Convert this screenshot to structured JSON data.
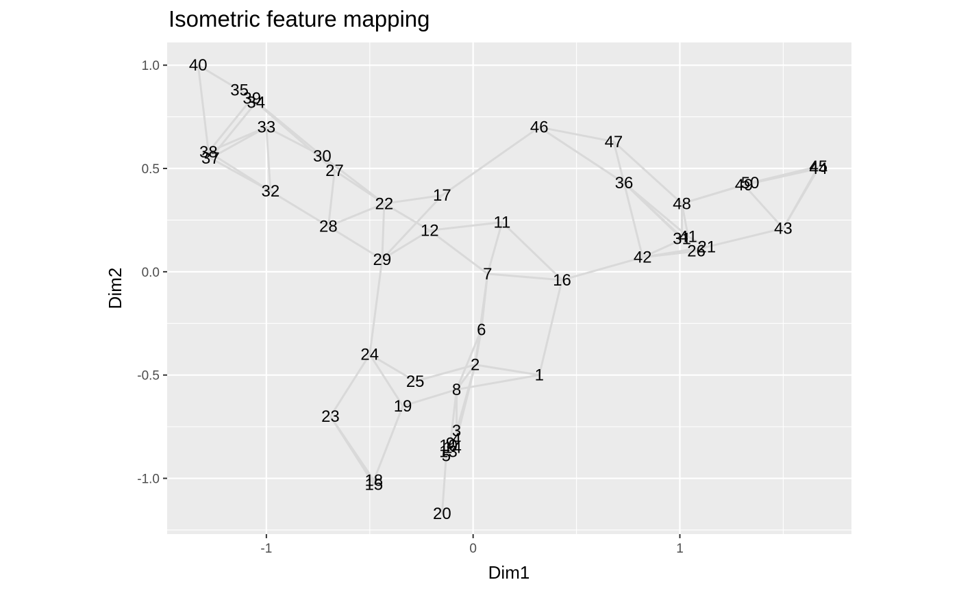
{
  "chart_data": {
    "type": "scatter",
    "title": "Isometric feature mapping",
    "xlabel": "Dim1",
    "ylabel": "Dim2",
    "xlim": [
      -1.48,
      1.83
    ],
    "ylim": [
      -1.27,
      1.11
    ],
    "x_ticks": [
      {
        "value": -1,
        "label": "-1"
      },
      {
        "value": 0,
        "label": "0"
      },
      {
        "value": 1,
        "label": "1"
      }
    ],
    "y_ticks": [
      {
        "value": 1.0,
        "label": "1.0"
      },
      {
        "value": 0.5,
        "label": "0.5"
      },
      {
        "value": 0.0,
        "label": "0.0"
      },
      {
        "value": -0.5,
        "label": "-0.5"
      },
      {
        "value": -1.0,
        "label": "-1.0"
      }
    ],
    "grid": true,
    "panel_color": "#ebebeb",
    "grid_color": "#ffffff",
    "edge_color": "#d9d9d9",
    "points": [
      {
        "label": "1",
        "x": 0.32,
        "y": -0.5
      },
      {
        "label": "2",
        "x": 0.01,
        "y": -0.45
      },
      {
        "label": "3",
        "x": -0.08,
        "y": -0.77
      },
      {
        "label": "4",
        "x": -0.08,
        "y": -0.81
      },
      {
        "label": "5",
        "x": -0.13,
        "y": -0.89
      },
      {
        "label": "6",
        "x": 0.04,
        "y": -0.28
      },
      {
        "label": "7",
        "x": 0.07,
        "y": -0.01
      },
      {
        "label": "8",
        "x": -0.08,
        "y": -0.57
      },
      {
        "label": "9",
        "x": -0.11,
        "y": -0.83
      },
      {
        "label": "10",
        "x": -0.12,
        "y": -0.84
      },
      {
        "label": "11",
        "x": 0.14,
        "y": 0.24
      },
      {
        "label": "12",
        "x": -0.21,
        "y": 0.2
      },
      {
        "label": "13",
        "x": -0.12,
        "y": -0.87
      },
      {
        "label": "14",
        "x": -0.1,
        "y": -0.85
      },
      {
        "label": "15",
        "x": -0.48,
        "y": -1.03
      },
      {
        "label": "16",
        "x": 0.43,
        "y": -0.04
      },
      {
        "label": "17",
        "x": -0.15,
        "y": 0.37
      },
      {
        "label": "18",
        "x": -0.48,
        "y": -1.01
      },
      {
        "label": "19",
        "x": -0.34,
        "y": -0.65
      },
      {
        "label": "20",
        "x": -0.15,
        "y": -1.17
      },
      {
        "label": "21",
        "x": 1.13,
        "y": 0.12
      },
      {
        "label": "22",
        "x": -0.43,
        "y": 0.33
      },
      {
        "label": "23",
        "x": -0.69,
        "y": -0.7
      },
      {
        "label": "24",
        "x": -0.5,
        "y": -0.4
      },
      {
        "label": "25",
        "x": -0.28,
        "y": -0.53
      },
      {
        "label": "26",
        "x": 1.08,
        "y": 0.1
      },
      {
        "label": "27",
        "x": -0.67,
        "y": 0.49
      },
      {
        "label": "28",
        "x": -0.7,
        "y": 0.22
      },
      {
        "label": "29",
        "x": -0.44,
        "y": 0.06
      },
      {
        "label": "30",
        "x": -0.73,
        "y": 0.56
      },
      {
        "label": "31",
        "x": 1.01,
        "y": 0.16
      },
      {
        "label": "32",
        "x": -0.98,
        "y": 0.39
      },
      {
        "label": "33",
        "x": -1.0,
        "y": 0.7
      },
      {
        "label": "34",
        "x": -1.05,
        "y": 0.82
      },
      {
        "label": "35",
        "x": -1.13,
        "y": 0.88
      },
      {
        "label": "36",
        "x": 0.73,
        "y": 0.43
      },
      {
        "label": "37",
        "x": -1.27,
        "y": 0.55
      },
      {
        "label": "38",
        "x": -1.28,
        "y": 0.58
      },
      {
        "label": "39",
        "x": -1.07,
        "y": 0.84
      },
      {
        "label": "40",
        "x": -1.33,
        "y": 1.0
      },
      {
        "label": "41",
        "x": 1.04,
        "y": 0.17
      },
      {
        "label": "42",
        "x": 0.82,
        "y": 0.07
      },
      {
        "label": "43",
        "x": 1.5,
        "y": 0.21
      },
      {
        "label": "44",
        "x": 1.67,
        "y": 0.5
      },
      {
        "label": "45",
        "x": 1.67,
        "y": 0.51
      },
      {
        "label": "46",
        "x": 0.32,
        "y": 0.7
      },
      {
        "label": "47",
        "x": 0.68,
        "y": 0.63
      },
      {
        "label": "48",
        "x": 1.01,
        "y": 0.33
      },
      {
        "label": "49",
        "x": 1.31,
        "y": 0.42
      },
      {
        "label": "50",
        "x": 1.34,
        "y": 0.43
      }
    ],
    "edges": [
      [
        "40",
        "38"
      ],
      [
        "40",
        "35"
      ],
      [
        "35",
        "39"
      ],
      [
        "39",
        "34"
      ],
      [
        "38",
        "37"
      ],
      [
        "38",
        "33"
      ],
      [
        "37",
        "33"
      ],
      [
        "38",
        "39"
      ],
      [
        "37",
        "34"
      ],
      [
        "38",
        "32"
      ],
      [
        "37",
        "32"
      ],
      [
        "33",
        "32"
      ],
      [
        "33",
        "30"
      ],
      [
        "39",
        "30"
      ],
      [
        "34",
        "27"
      ],
      [
        "30",
        "27"
      ],
      [
        "30",
        "22"
      ],
      [
        "27",
        "22"
      ],
      [
        "32",
        "28"
      ],
      [
        "27",
        "28"
      ],
      [
        "28",
        "22"
      ],
      [
        "28",
        "29"
      ],
      [
        "22",
        "29"
      ],
      [
        "22",
        "17"
      ],
      [
        "22",
        "12"
      ],
      [
        "29",
        "17"
      ],
      [
        "29",
        "12"
      ],
      [
        "12",
        "11"
      ],
      [
        "12",
        "7"
      ],
      [
        "17",
        "46"
      ],
      [
        "11",
        "7"
      ],
      [
        "11",
        "16"
      ],
      [
        "7",
        "16"
      ],
      [
        "7",
        "6"
      ],
      [
        "7",
        "2"
      ],
      [
        "6",
        "2"
      ],
      [
        "6",
        "8"
      ],
      [
        "16",
        "1"
      ],
      [
        "16",
        "42"
      ],
      [
        "1",
        "2"
      ],
      [
        "1",
        "8"
      ],
      [
        "2",
        "8"
      ],
      [
        "2",
        "25"
      ],
      [
        "2",
        "3"
      ],
      [
        "2",
        "4"
      ],
      [
        "8",
        "19"
      ],
      [
        "8",
        "3"
      ],
      [
        "8",
        "9"
      ],
      [
        "24",
        "25"
      ],
      [
        "24",
        "19"
      ],
      [
        "24",
        "23"
      ],
      [
        "24",
        "29"
      ],
      [
        "23",
        "18"
      ],
      [
        "23",
        "15"
      ],
      [
        "19",
        "18"
      ],
      [
        "3",
        "4"
      ],
      [
        "4",
        "9"
      ],
      [
        "9",
        "14"
      ],
      [
        "10",
        "13"
      ],
      [
        "5",
        "13"
      ],
      [
        "5",
        "20"
      ],
      [
        "14",
        "5"
      ],
      [
        "46",
        "47"
      ],
      [
        "46",
        "36"
      ],
      [
        "47",
        "36"
      ],
      [
        "47",
        "48"
      ],
      [
        "36",
        "42"
      ],
      [
        "36",
        "41"
      ],
      [
        "36",
        "31"
      ],
      [
        "36",
        "26"
      ],
      [
        "48",
        "31"
      ],
      [
        "48",
        "41"
      ],
      [
        "48",
        "49"
      ],
      [
        "48",
        "50"
      ],
      [
        "42",
        "41"
      ],
      [
        "42",
        "26"
      ],
      [
        "42",
        "21"
      ],
      [
        "41",
        "21"
      ],
      [
        "26",
        "21"
      ],
      [
        "21",
        "43"
      ],
      [
        "49",
        "50"
      ],
      [
        "49",
        "44"
      ],
      [
        "50",
        "45"
      ],
      [
        "50",
        "44"
      ],
      [
        "43",
        "44"
      ],
      [
        "43",
        "45"
      ],
      [
        "43",
        "49"
      ]
    ]
  }
}
